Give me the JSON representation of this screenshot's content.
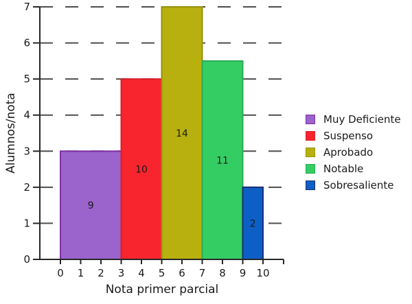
{
  "chart_data": {
    "type": "bar",
    "variant": "histogram-density",
    "title": "",
    "xlabel": "Nota primer parcial",
    "ylabel": "Alumnos/nota",
    "xlim": [
      0,
      11
    ],
    "ylim": [
      0,
      7
    ],
    "x_ticks": [
      0,
      1,
      2,
      3,
      4,
      5,
      6,
      7,
      8,
      9,
      10
    ],
    "y_ticks": [
      0,
      1,
      2,
      3,
      4,
      5,
      6,
      7
    ],
    "grid": {
      "axis": "y",
      "style": "dashed",
      "color": "#4d4d4d"
    },
    "legend_position": "outside-center-right",
    "bars": [
      {
        "label": "Muy Deficiente",
        "x_start": 0,
        "x_end": 3,
        "value": 3,
        "count_label": "9",
        "fill": "#9b63cc",
        "edge": "#7d2fa3"
      },
      {
        "label": "Suspenso",
        "x_start": 3,
        "x_end": 5,
        "value": 5,
        "count_label": "10",
        "fill": "#f8252e",
        "edge": "#d7202a"
      },
      {
        "label": "Aprobado",
        "x_start": 5,
        "x_end": 7,
        "value": 7,
        "count_label": "14",
        "fill": "#b8b00e",
        "edge": "#95900c"
      },
      {
        "label": "Notable",
        "x_start": 7,
        "x_end": 9,
        "value": 5.5,
        "count_label": "11",
        "fill": "#34cd64",
        "edge": "#2aab51"
      },
      {
        "label": "Sobresaliente",
        "x_start": 9,
        "x_end": 10,
        "value": 2,
        "count_label": "2",
        "fill": "#0d5fc6",
        "edge": "#1a2f73"
      }
    ],
    "ink_color": "#262626",
    "text_color": "#1a1a1a"
  }
}
